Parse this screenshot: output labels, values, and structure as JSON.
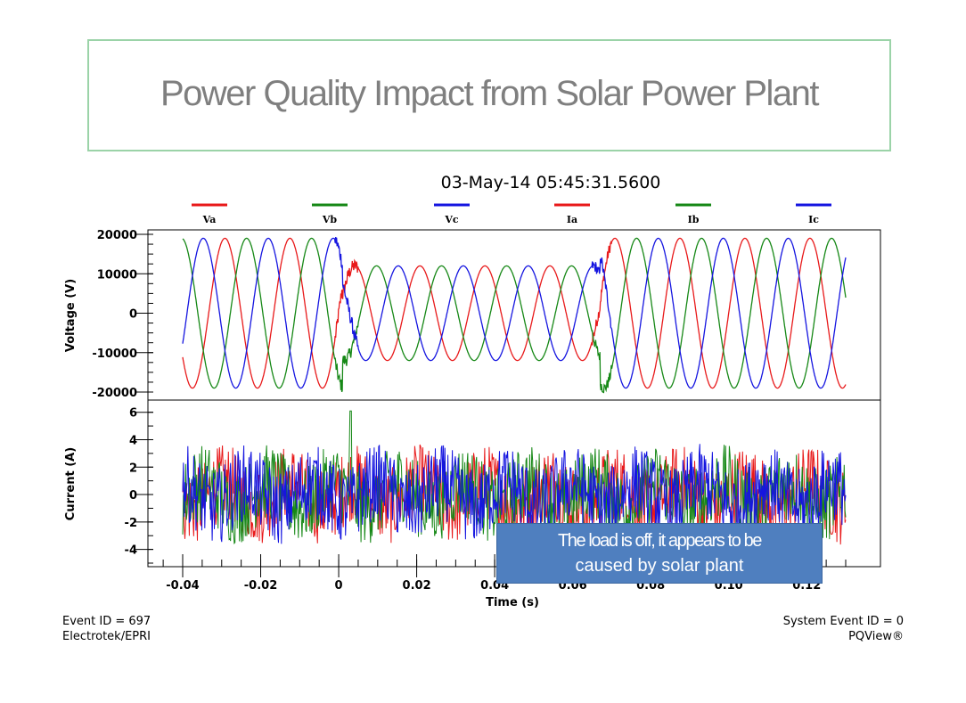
{
  "slide": {
    "title": "Power Quality Impact from Solar Power Plant"
  },
  "chart_data": {
    "type": "line",
    "title": "03-May-14 05:45:31.5600",
    "legend": [
      {
        "name": "Va",
        "color": "#e8191a"
      },
      {
        "name": "Vb",
        "color": "#168816"
      },
      {
        "name": "Vc",
        "color": "#1515e0"
      },
      {
        "name": "Ia",
        "color": "#e8191a"
      },
      {
        "name": "Ib",
        "color": "#168816"
      },
      {
        "name": "Ic",
        "color": "#1515e0"
      }
    ],
    "legend_position": "top",
    "xlabel": "Time (s)",
    "x_ticks": [
      "-0.04",
      "-0.02",
      "0",
      "0.02",
      "0.04",
      "0.06",
      "0.08",
      "0.10",
      "0.12"
    ],
    "xlim": [
      -0.04,
      0.13
    ],
    "voltage_panel": {
      "ylabel": "Voltage (V)",
      "ylim": [
        -20000,
        20000
      ],
      "y_ticks": [
        "20000",
        "10000",
        "0",
        "-10000",
        "-20000"
      ],
      "amplitude": 19000,
      "frequency_hz": 60,
      "sag": {
        "start": 0.001,
        "end": 0.067,
        "amplitude": 12000
      },
      "series": [
        {
          "name": "Va",
          "phase_deg": 0
        },
        {
          "name": "Vb",
          "phase_deg": -120
        },
        {
          "name": "Vc",
          "phase_deg": 120
        }
      ]
    },
    "current_panel": {
      "ylabel": "Current (A)",
      "ylim": [
        -5,
        6.5
      ],
      "y_ticks": [
        "6",
        "4",
        "2",
        "0",
        "-2",
        "-4"
      ],
      "noise_range": [
        -4.5,
        3.8
      ],
      "spike": {
        "x": 0.003,
        "value": 6.1
      },
      "series": [
        {
          "name": "Ia"
        },
        {
          "name": "Ib"
        },
        {
          "name": "Ic"
        }
      ]
    }
  },
  "annotation": {
    "line1": "The load is off, it appears to be",
    "line2": "caused by solar plant"
  },
  "footer": {
    "event_id": "Event ID = 697",
    "source": "Electrotek/EPRI",
    "system_event_id": "System Event ID = 0",
    "product": "PQView®"
  }
}
